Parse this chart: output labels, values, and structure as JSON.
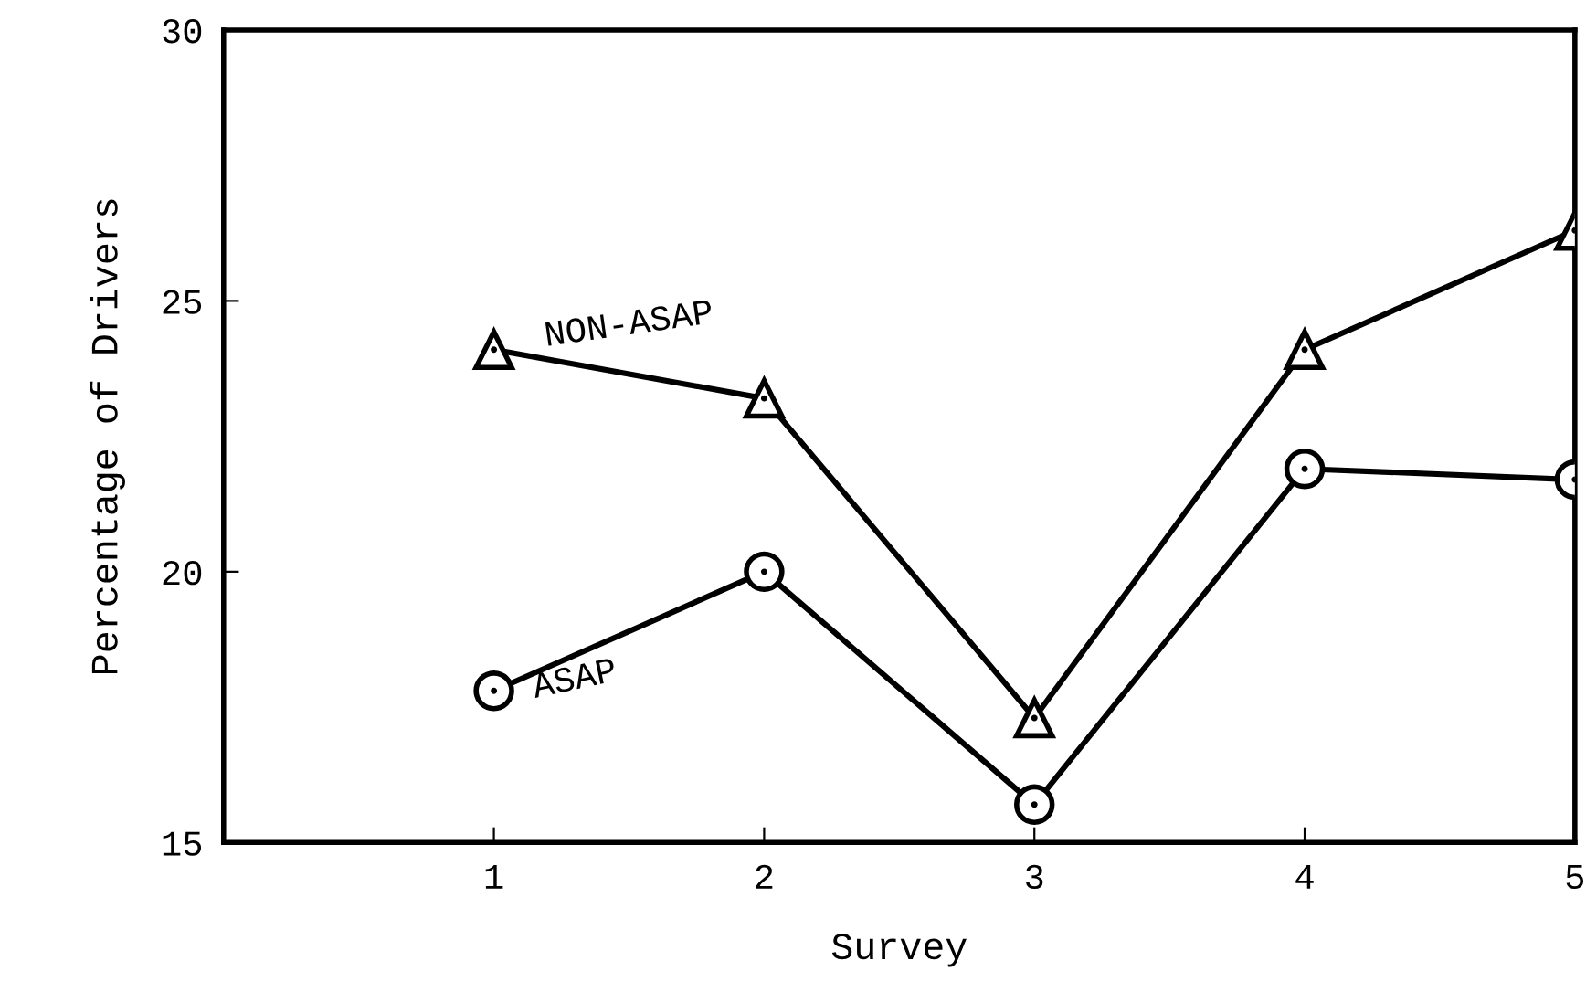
{
  "chart_data": {
    "type": "line",
    "xlabel": "Survey",
    "ylabel": "Percentage of Drivers",
    "x": [
      1,
      2,
      3,
      4,
      5
    ],
    "series": [
      {
        "name": "NON-ASAP",
        "color": "#000000",
        "marker": "triangle",
        "values": [
          24.1,
          23.2,
          17.3,
          24.1,
          26.3
        ]
      },
      {
        "name": "ASAP",
        "color": "#000000",
        "marker": "circle",
        "values": [
          17.8,
          20.0,
          15.7,
          21.9,
          21.7
        ]
      }
    ],
    "xlim": [
      0,
      5
    ],
    "xticks": [
      1,
      2,
      3,
      4,
      5
    ],
    "ylim": [
      15,
      30
    ],
    "yticks": [
      15,
      20,
      25,
      30
    ],
    "grid": false,
    "legend": false,
    "line_style": "solid"
  }
}
